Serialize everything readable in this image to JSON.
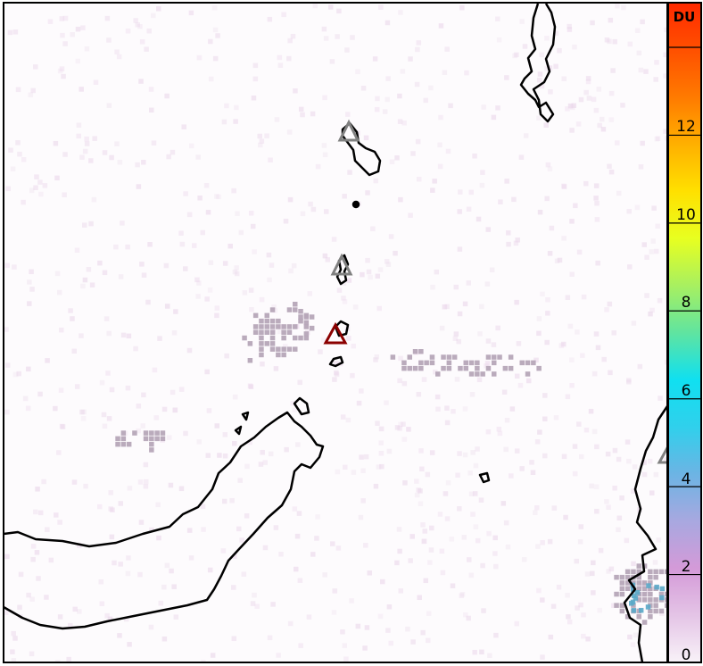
{
  "colorbar": {
    "unit_label": "DU",
    "min": 0,
    "max": 14,
    "tick_labels": [
      "0",
      "2",
      "4",
      "6",
      "8",
      "10",
      "12"
    ],
    "colors": [
      "#f8f2f8",
      "#e4c4e6",
      "#d49ad8",
      "#a8a8e0",
      "#6cb4e4",
      "#30d0ec",
      "#10e0f0",
      "#60e4a0",
      "#a8f060",
      "#e8ff20",
      "#ffe000",
      "#ffb000",
      "#ff7a00",
      "#ff5000",
      "#ff2a00"
    ]
  },
  "map": {
    "pixel_color": "#b6a6b8",
    "high_pixel_color": "#5aa8c8",
    "land_outline_color": "#000000",
    "volcano_markers": [
      {
        "color": "#808080",
        "state": "other"
      },
      {
        "color": "#808080",
        "state": "other"
      },
      {
        "color": "#8b0000",
        "state": "active"
      },
      {
        "color": "#808080",
        "state": "other"
      }
    ]
  }
}
